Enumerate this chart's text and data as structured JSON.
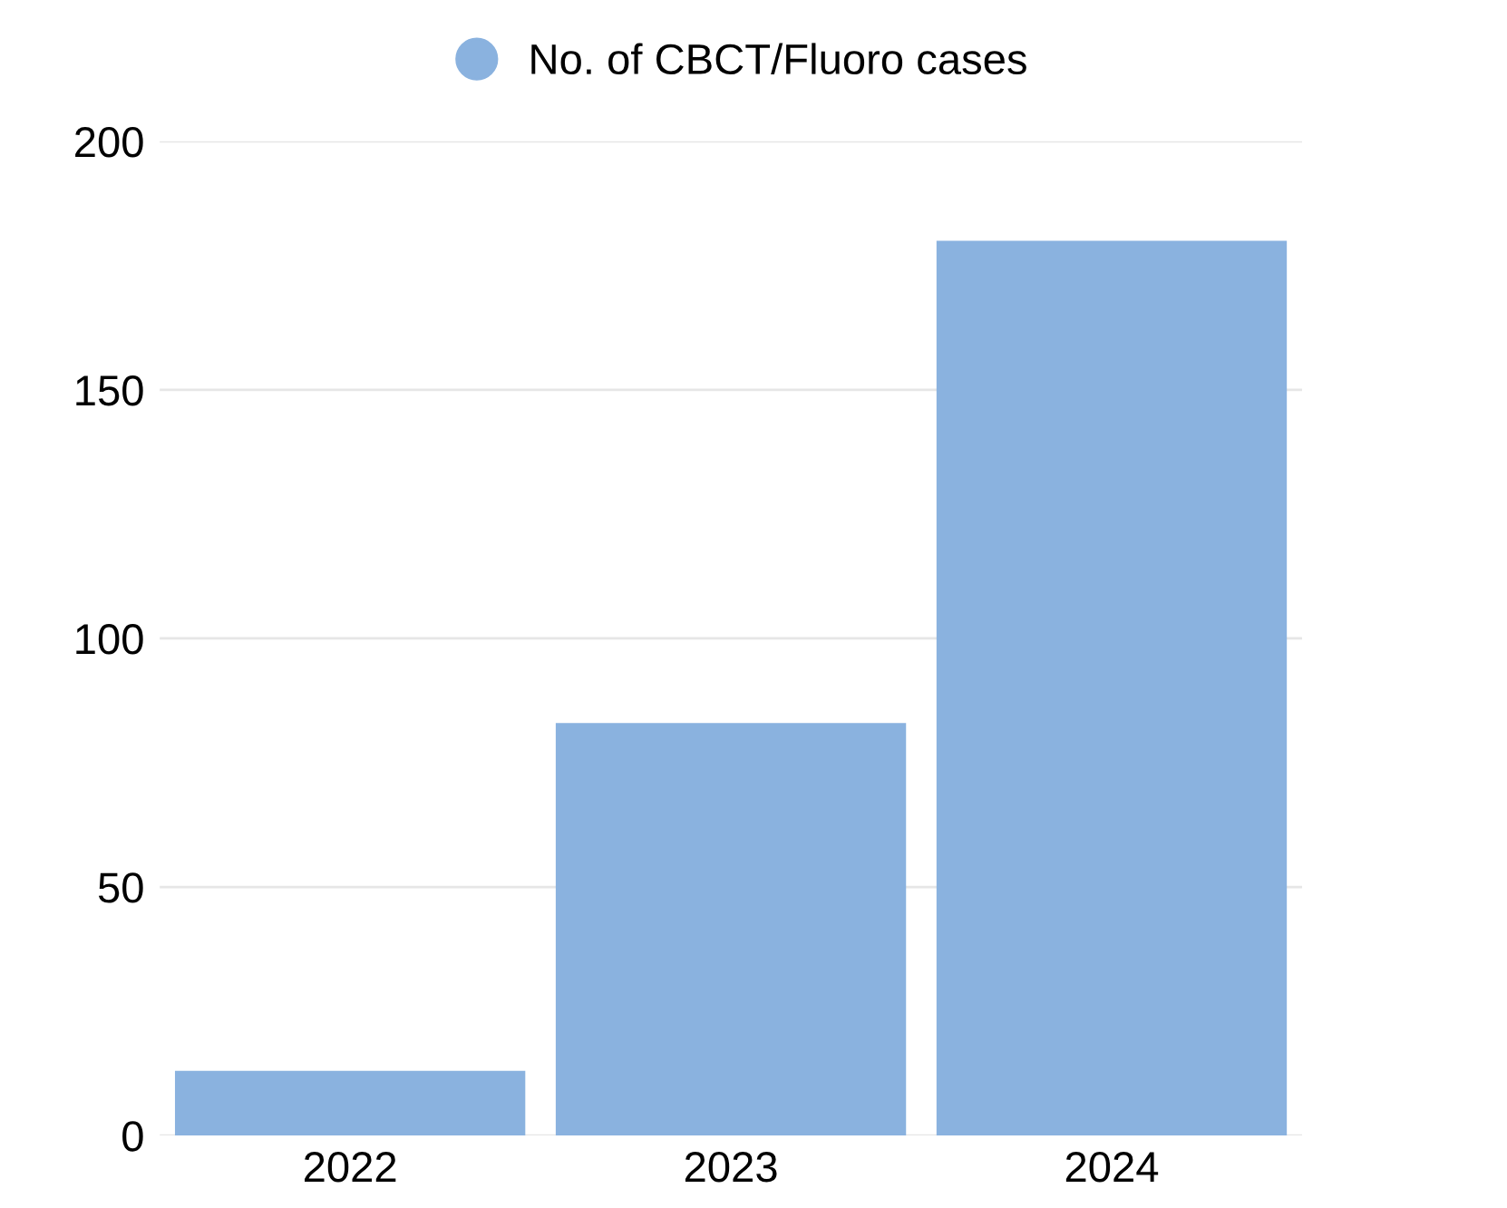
{
  "chart_data": {
    "type": "bar",
    "categories": [
      "2022",
      "2023",
      "2024"
    ],
    "series": [
      {
        "name": "No. of CBCT/Fluoro cases",
        "color": "#8ab2df",
        "values": [
          13,
          83,
          180
        ]
      }
    ],
    "ylim": [
      0,
      200
    ],
    "yticks": [
      0,
      50,
      100,
      150,
      200
    ],
    "grid": "y",
    "legend": "top"
  }
}
